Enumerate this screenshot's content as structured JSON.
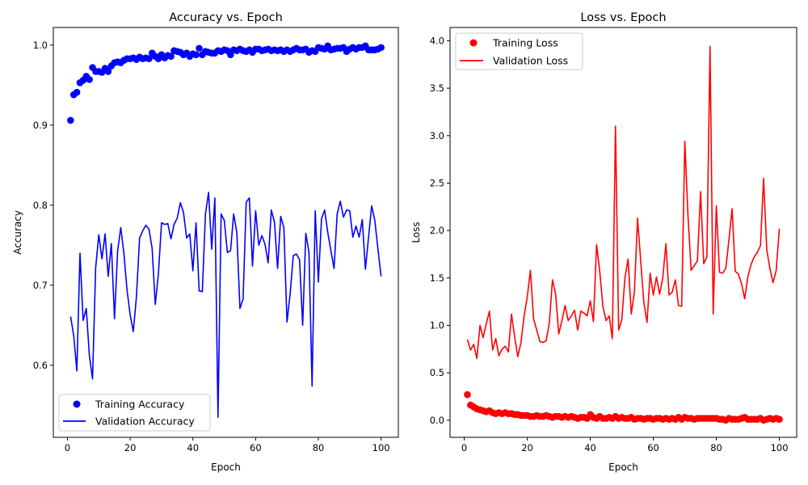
{
  "chart_data": [
    {
      "type": "line",
      "title": "Accuracy vs. Epoch",
      "xlabel": "Epoch",
      "ylabel": "Accuracy",
      "xlim": [
        -4.5,
        105.5
      ],
      "ylim": [
        0.51,
        1.022
      ],
      "xticks": [
        0,
        20,
        40,
        60,
        80,
        100
      ],
      "yticks": [
        0.6,
        0.7,
        0.8,
        0.9,
        1.0
      ],
      "ytick_labels": [
        "0.6",
        "0.7",
        "0.8",
        "0.9",
        "1.0"
      ],
      "grid": false,
      "legend_position": "lower left",
      "series": [
        {
          "name": "Training Accuracy",
          "style": "markers",
          "color": "#0000ff",
          "values": [
            0.906,
            0.938,
            0.941,
            0.953,
            0.956,
            0.961,
            0.957,
            0.972,
            0.967,
            0.967,
            0.966,
            0.971,
            0.967,
            0.974,
            0.978,
            0.979,
            0.978,
            0.981,
            0.983,
            0.983,
            0.984,
            0.982,
            0.985,
            0.983,
            0.984,
            0.983,
            0.99,
            0.986,
            0.983,
            0.988,
            0.984,
            0.987,
            0.986,
            0.993,
            0.992,
            0.991,
            0.988,
            0.99,
            0.986,
            0.989,
            0.988,
            0.996,
            0.988,
            0.992,
            0.991,
            0.99,
            0.99,
            0.993,
            0.992,
            0.994,
            0.993,
            0.988,
            0.994,
            0.993,
            0.995,
            0.993,
            0.992,
            0.994,
            0.991,
            0.995,
            0.995,
            0.993,
            0.994,
            0.995,
            0.993,
            0.994,
            0.993,
            0.994,
            0.992,
            0.994,
            0.992,
            0.994,
            0.996,
            0.994,
            0.994,
            0.995,
            0.991,
            0.993,
            0.992,
            0.997,
            0.996,
            0.995,
            0.999,
            0.994,
            0.995,
            0.996,
            0.996,
            0.997,
            0.992,
            0.995,
            0.997,
            0.995,
            0.997,
            0.997,
            0.999,
            0.994,
            0.994,
            0.994,
            0.995,
            0.997
          ]
        },
        {
          "name": "Validation Accuracy",
          "style": "line",
          "color": "#0000ff",
          "values": [
            0.661,
            0.637,
            0.593,
            0.74,
            0.656,
            0.671,
            0.612,
            0.583,
            0.722,
            0.763,
            0.733,
            0.764,
            0.711,
            0.752,
            0.658,
            0.743,
            0.772,
            0.74,
            0.694,
            0.663,
            0.642,
            0.686,
            0.759,
            0.768,
            0.775,
            0.77,
            0.746,
            0.676,
            0.714,
            0.778,
            0.776,
            0.777,
            0.758,
            0.776,
            0.784,
            0.803,
            0.791,
            0.759,
            0.764,
            0.718,
            0.778,
            0.693,
            0.692,
            0.789,
            0.816,
            0.745,
            0.809,
            0.535,
            0.789,
            0.781,
            0.741,
            0.743,
            0.789,
            0.766,
            0.671,
            0.683,
            0.804,
            0.809,
            0.724,
            0.793,
            0.75,
            0.762,
            0.751,
            0.728,
            0.794,
            0.779,
            0.721,
            0.786,
            0.772,
            0.654,
            0.689,
            0.737,
            0.739,
            0.732,
            0.65,
            0.765,
            0.741,
            0.574,
            0.793,
            0.704,
            0.783,
            0.794,
            0.766,
            0.743,
            0.721,
            0.789,
            0.805,
            0.785,
            0.794,
            0.793,
            0.76,
            0.774,
            0.76,
            0.782,
            0.72,
            0.76,
            0.799,
            0.781,
            0.745,
            0.711
          ]
        }
      ]
    },
    {
      "type": "line",
      "title": "Loss vs. Epoch",
      "xlabel": "Epoch",
      "ylabel": "Loss",
      "xlim": [
        -4.5,
        105.5
      ],
      "ylim": [
        -0.18,
        4.14
      ],
      "xticks": [
        0,
        20,
        40,
        60,
        80,
        100
      ],
      "yticks": [
        0.0,
        0.5,
        1.0,
        1.5,
        2.0,
        2.5,
        3.0,
        3.5,
        4.0
      ],
      "ytick_labels": [
        "0.0",
        "0.5",
        "1.0",
        "1.5",
        "2.0",
        "2.5",
        "3.0",
        "3.5",
        "4.0"
      ],
      "grid": false,
      "legend_position": "upper left",
      "series": [
        {
          "name": "Training Loss",
          "style": "markers",
          "color": "#ff0000",
          "values": [
            0.27,
            0.16,
            0.14,
            0.12,
            0.11,
            0.1,
            0.09,
            0.1,
            0.08,
            0.07,
            0.08,
            0.07,
            0.08,
            0.07,
            0.07,
            0.06,
            0.06,
            0.05,
            0.05,
            0.05,
            0.04,
            0.04,
            0.05,
            0.04,
            0.04,
            0.05,
            0.04,
            0.03,
            0.04,
            0.04,
            0.03,
            0.04,
            0.03,
            0.04,
            0.03,
            0.02,
            0.03,
            0.03,
            0.02,
            0.06,
            0.03,
            0.02,
            0.04,
            0.02,
            0.02,
            0.03,
            0.02,
            0.04,
            0.02,
            0.03,
            0.02,
            0.02,
            0.03,
            0.01,
            0.02,
            0.02,
            0.01,
            0.02,
            0.02,
            0.01,
            0.02,
            0.02,
            0.01,
            0.02,
            0.01,
            0.02,
            0.01,
            0.03,
            0.01,
            0.03,
            0.02,
            0.02,
            0.01,
            0.02,
            0.02,
            0.02,
            0.02,
            0.02,
            0.02,
            0.02,
            0.01,
            0.01,
            0.0,
            0.02,
            0.01,
            0.01,
            0.01,
            0.02,
            0.03,
            0.01,
            0.01,
            0.01,
            0.01,
            0.02,
            0.0,
            0.01,
            0.02,
            0.01,
            0.02,
            0.01
          ]
        },
        {
          "name": "Validation Loss",
          "style": "line",
          "color": "#ff0000",
          "values": [
            0.85,
            0.74,
            0.8,
            0.65,
            1.0,
            0.87,
            1.02,
            1.15,
            0.74,
            0.86,
            0.68,
            0.75,
            0.78,
            0.72,
            1.12,
            0.88,
            0.67,
            0.82,
            1.1,
            1.3,
            1.58,
            1.07,
            0.95,
            0.83,
            0.82,
            0.84,
            1.02,
            1.48,
            1.33,
            0.91,
            1.05,
            1.21,
            1.05,
            1.1,
            1.16,
            0.95,
            1.15,
            1.13,
            1.1,
            1.26,
            1.04,
            1.85,
            1.57,
            1.2,
            1.05,
            1.1,
            0.86,
            3.1,
            0.95,
            1.06,
            1.5,
            1.7,
            1.12,
            1.35,
            2.13,
            1.68,
            1.24,
            1.03,
            1.55,
            1.32,
            1.51,
            1.33,
            1.5,
            1.86,
            1.32,
            1.35,
            1.48,
            1.21,
            1.2,
            2.94,
            2.16,
            1.58,
            1.63,
            1.68,
            2.41,
            1.65,
            1.72,
            3.94,
            1.12,
            2.26,
            1.56,
            1.55,
            1.6,
            1.9,
            2.23,
            1.57,
            1.54,
            1.44,
            1.28,
            1.51,
            1.64,
            1.72,
            1.77,
            1.84,
            2.55,
            1.8,
            1.6,
            1.45,
            1.58,
            2.02
          ]
        }
      ]
    }
  ]
}
